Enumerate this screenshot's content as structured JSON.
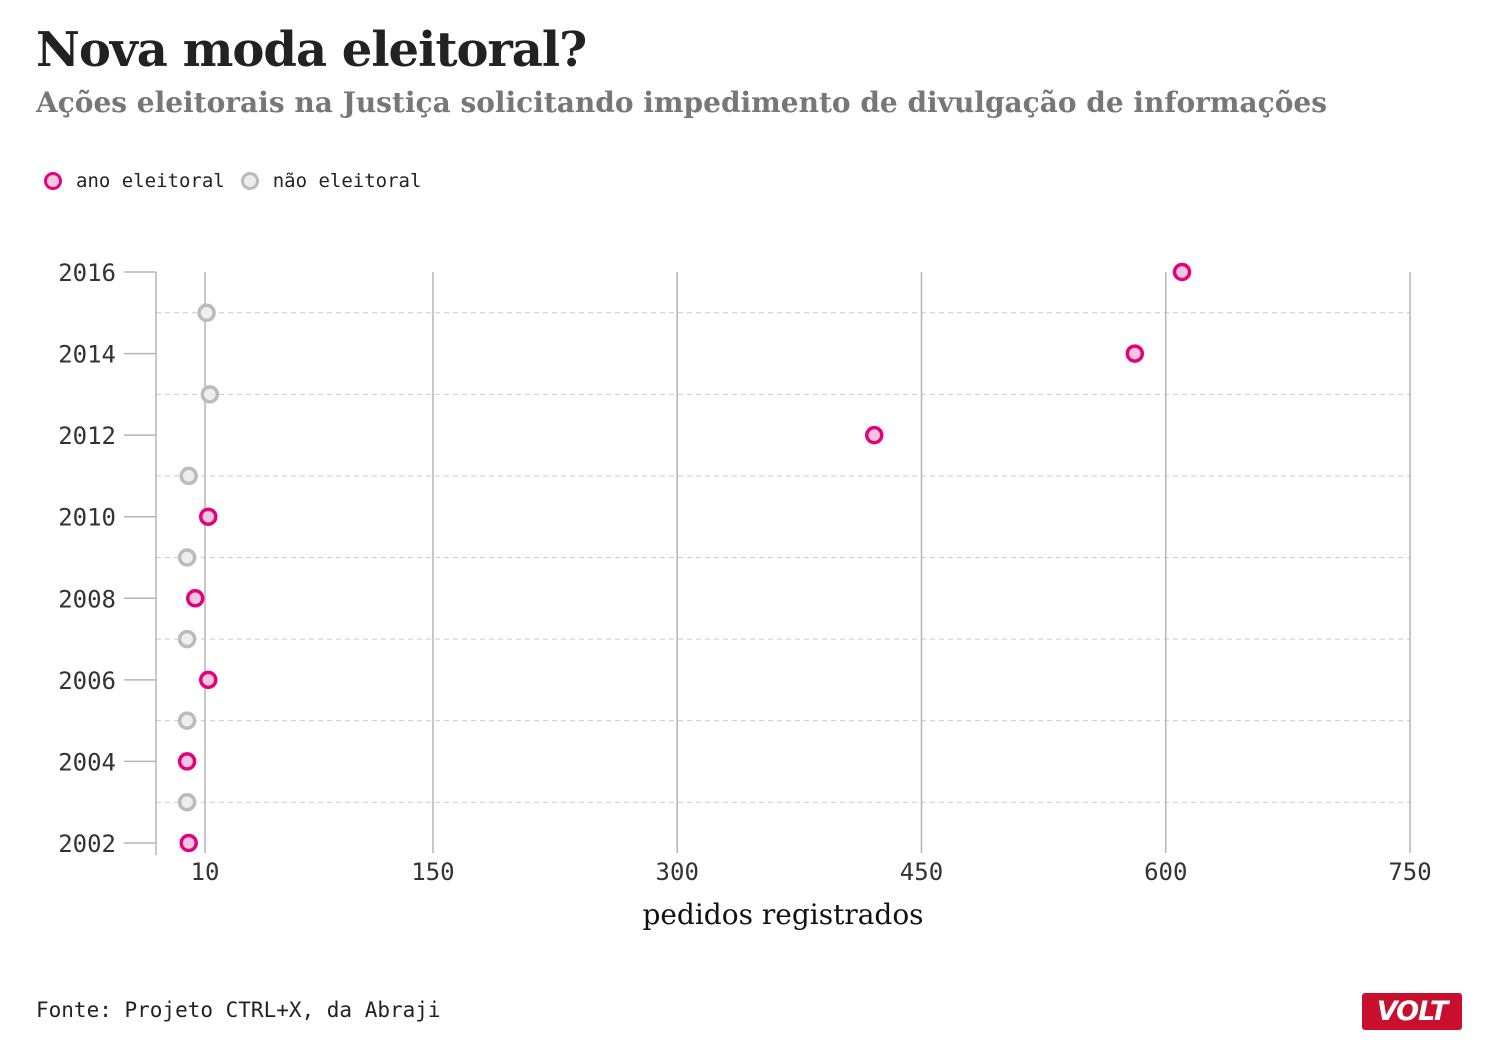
{
  "header": {
    "title": "Nova moda eleitoral?",
    "subtitle": "Ações eleitorais na Justiça solicitando impedimento de divulgação de informações"
  },
  "legend": {
    "items": [
      {
        "label": "ano eleitoral",
        "color": "#e5007e"
      },
      {
        "label": "não eleitoral",
        "color": "#bbbbbb"
      }
    ]
  },
  "footer": {
    "source": "Fonte: Projeto CTRL+X, da Abraji",
    "logo": "VOLT"
  },
  "chart_data": {
    "type": "scatter",
    "xlabel": "pedidos registrados",
    "ylabel": "",
    "xlim": [
      -20,
      750
    ],
    "ylim": [
      2002,
      2016
    ],
    "x_ticks": [
      10,
      150,
      300,
      450,
      600,
      750
    ],
    "y_ticks": [
      2002,
      2004,
      2006,
      2008,
      2010,
      2012,
      2014,
      2016
    ],
    "colors": {
      "eleitoral": "#e5007e",
      "nao_eleitoral": "#bbbbbb"
    },
    "points": [
      {
        "year": 2002,
        "value": 0,
        "category": "eleitoral"
      },
      {
        "year": 2003,
        "value": -1,
        "category": "nao_eleitoral"
      },
      {
        "year": 2004,
        "value": -1,
        "category": "eleitoral"
      },
      {
        "year": 2005,
        "value": -1,
        "category": "nao_eleitoral"
      },
      {
        "year": 2006,
        "value": 12,
        "category": "eleitoral"
      },
      {
        "year": 2007,
        "value": -1,
        "category": "nao_eleitoral"
      },
      {
        "year": 2008,
        "value": 4,
        "category": "eleitoral"
      },
      {
        "year": 2009,
        "value": -1,
        "category": "nao_eleitoral"
      },
      {
        "year": 2010,
        "value": 12,
        "category": "eleitoral"
      },
      {
        "year": 2011,
        "value": 0,
        "category": "nao_eleitoral"
      },
      {
        "year": 2012,
        "value": 421,
        "category": "eleitoral"
      },
      {
        "year": 2013,
        "value": 13,
        "category": "nao_eleitoral"
      },
      {
        "year": 2014,
        "value": 581,
        "category": "eleitoral"
      },
      {
        "year": 2015,
        "value": 11,
        "category": "nao_eleitoral"
      },
      {
        "year": 2016,
        "value": 610,
        "category": "eleitoral"
      }
    ]
  }
}
